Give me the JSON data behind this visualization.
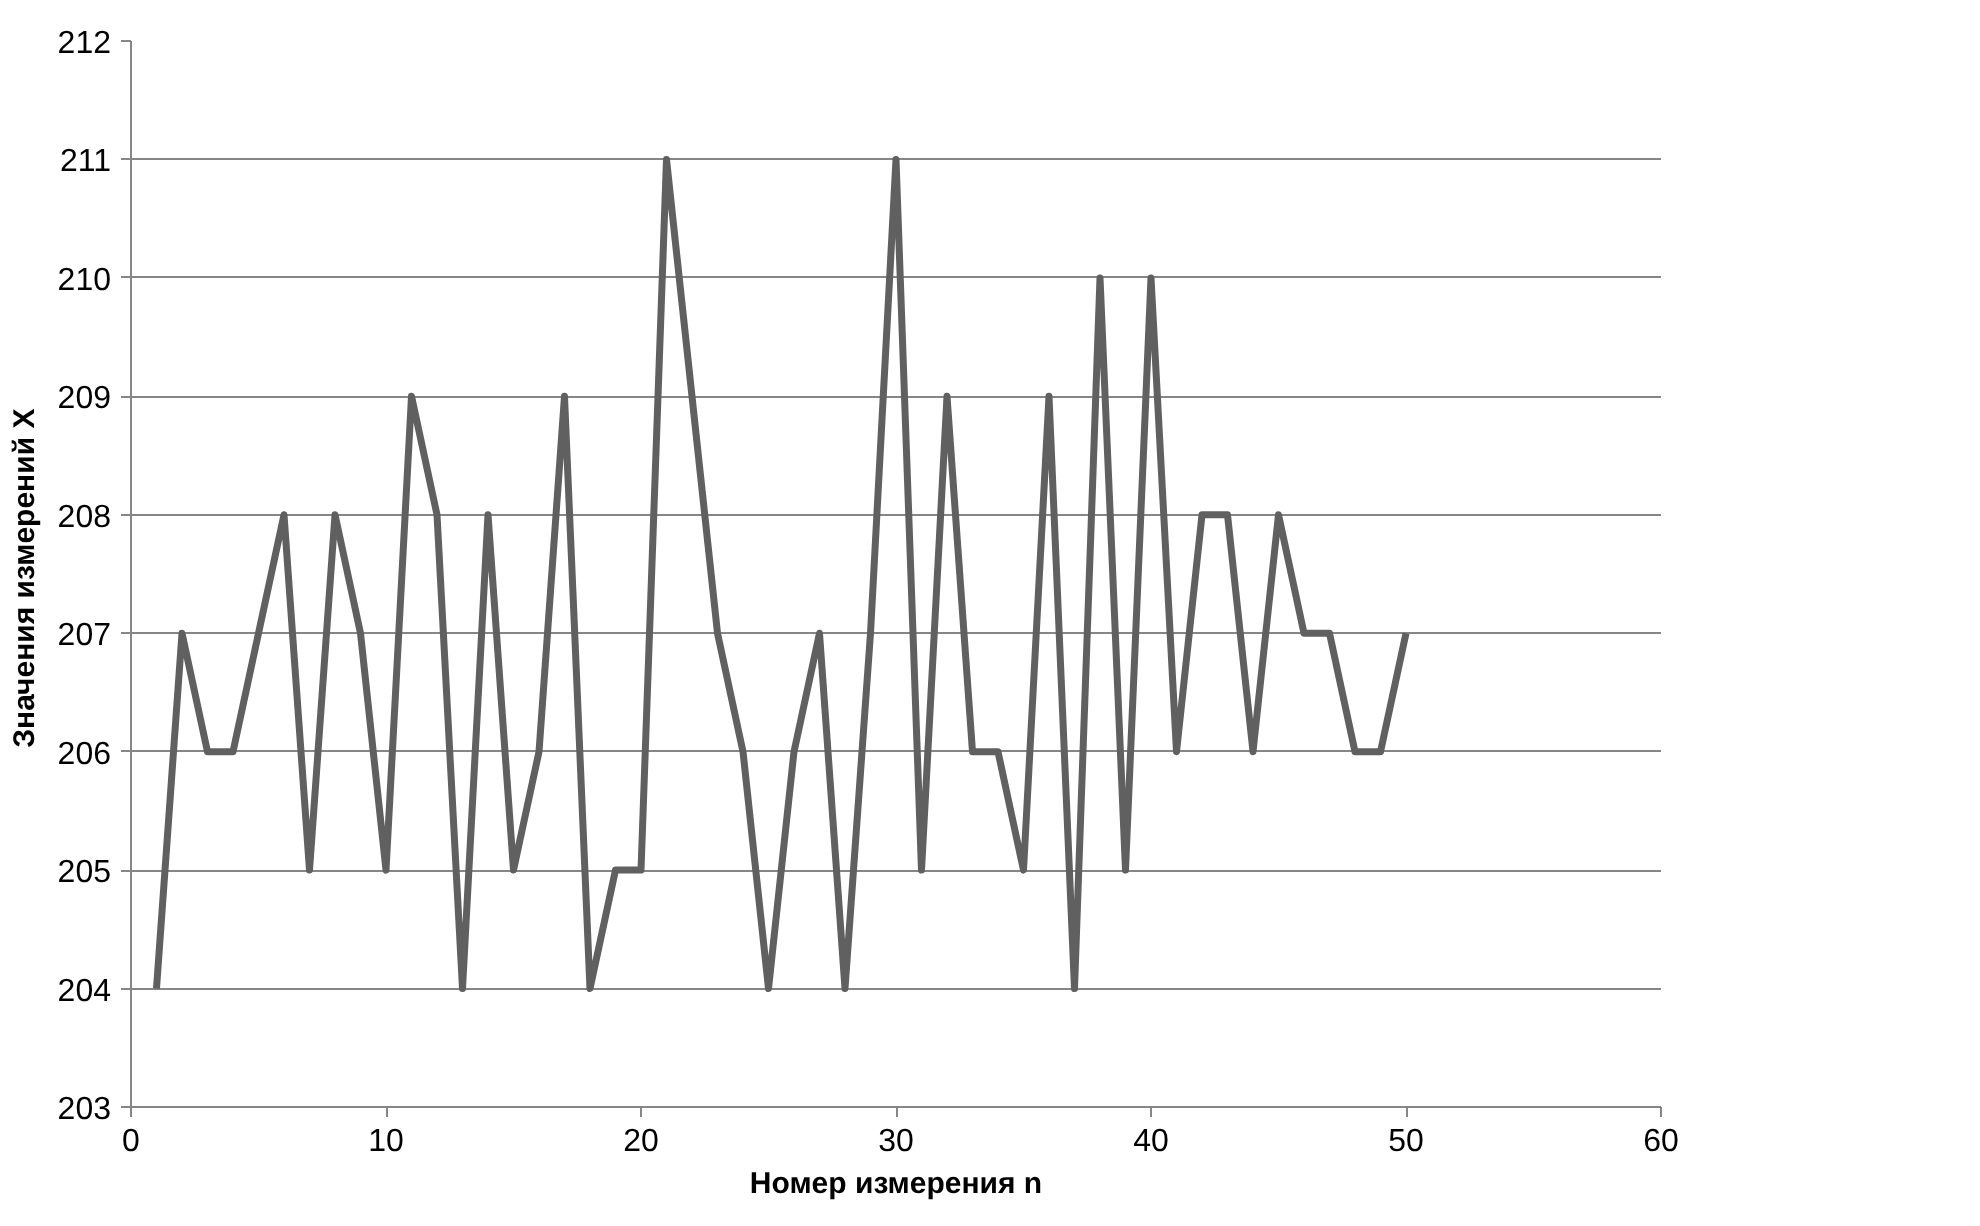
{
  "chart_data": {
    "type": "line",
    "xlabel": "Номер измерения n",
    "ylabel": "Значения измерений  X",
    "x": [
      1,
      2,
      3,
      4,
      5,
      6,
      7,
      8,
      9,
      10,
      11,
      12,
      13,
      14,
      15,
      16,
      17,
      18,
      19,
      20,
      21,
      22,
      23,
      24,
      25,
      26,
      27,
      28,
      29,
      30,
      31,
      32,
      33,
      34,
      35,
      36,
      37,
      38,
      39,
      40,
      41,
      42,
      43,
      44,
      45,
      46,
      47,
      48,
      49,
      50
    ],
    "series": [
      {
        "color": "#606060",
        "values": [
          204,
          207,
          206,
          206,
          207,
          208,
          205,
          208,
          207,
          205,
          209,
          208,
          204,
          208,
          205,
          206,
          209,
          204,
          205,
          205,
          211,
          209,
          207,
          206,
          204,
          206,
          207,
          204,
          207,
          211,
          205,
          209,
          206,
          206,
          205,
          209,
          204,
          210,
          205,
          210,
          206,
          208,
          208,
          206,
          208,
          207,
          207,
          206,
          206,
          207
        ]
      }
    ],
    "xlim": [
      0,
      60
    ],
    "xticks": [
      0,
      10,
      20,
      30,
      40,
      50,
      60
    ],
    "ylim": [
      203,
      212
    ],
    "yticks": [
      203,
      204,
      205,
      206,
      207,
      208,
      209,
      210,
      211,
      212
    ],
    "grid": "y",
    "marker": "none",
    "line_style": "solid"
  }
}
